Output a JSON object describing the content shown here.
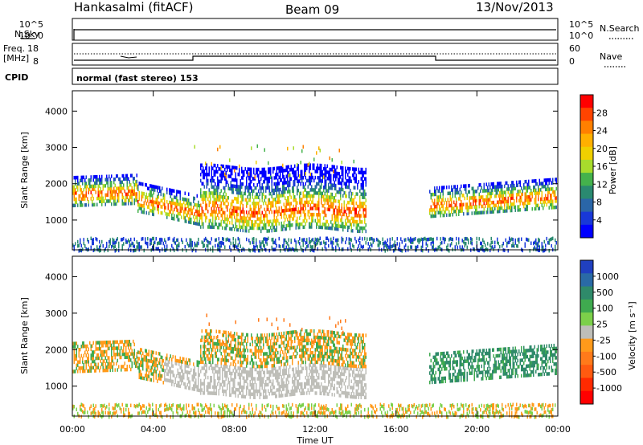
{
  "header": {
    "station": "Hankasalmi (fitACF)",
    "beam": "Beam 09",
    "date": "13/Nov/2013"
  },
  "top_panels": {
    "nsky_label": "N.Sky",
    "nsky_ticks": [
      "10^5",
      "10^0"
    ],
    "nsearch_label": "N.Search",
    "nsearch_ticks": [
      "10^5",
      "10^0"
    ],
    "freq_label_1": "Freq.",
    "freq_label_2": "[MHz]",
    "freq_ticks": [
      "18",
      "8"
    ],
    "nave_label": "Nave",
    "nave_ticks": [
      "60",
      "0"
    ],
    "cpid_label": "CPID",
    "cpid_text": "normal (fast stereo) 153"
  },
  "chart_data": [
    {
      "type": "heatmap",
      "panel": "power",
      "ylabel": "Slant Range [km]",
      "ylim": [
        180,
        4560
      ],
      "yticks": [
        "1000",
        "2000",
        "3000",
        "4000"
      ],
      "xlim_hours": [
        0,
        24
      ],
      "colorbar_label": "Power [dB]",
      "colorbar_ticks": [
        "28",
        "24",
        "20",
        "16",
        "12",
        "8",
        "4"
      ],
      "colorbar_colors": [
        "#ff0000",
        "#ff4400",
        "#ff8000",
        "#ffb000",
        "#f0d000",
        "#a8dc2c",
        "#44b24c",
        "#2a8a70",
        "#2a66a8",
        "#1838d8",
        "#0000ff"
      ]
    },
    {
      "type": "heatmap",
      "panel": "velocity",
      "ylabel": "Slant Range [km]",
      "ylim": [
        180,
        4560
      ],
      "yticks": [
        "1000",
        "2000",
        "3000",
        "4000"
      ],
      "xlim_hours": [
        0,
        24
      ],
      "colorbar_label": "Velocity [m s⁻¹]",
      "colorbar_ticks": [
        "1000",
        "500",
        "100",
        "25",
        "-25",
        "-100",
        "-500",
        "-1000"
      ],
      "colorbar_colors": [
        "#2040c0",
        "#2a6aa6",
        "#2f8a6a",
        "#3faa4f",
        "#7cd04a",
        "#bebeb8",
        "#ff9a1a",
        "#ff7a1a",
        "#ff5a10",
        "#ff2a00",
        "#ff0000"
      ]
    }
  ],
  "x_axis": {
    "ticks": [
      "00:00",
      "04:00",
      "08:00",
      "12:00",
      "16:00",
      "20:00",
      "00:00"
    ],
    "label": "Time UT"
  }
}
